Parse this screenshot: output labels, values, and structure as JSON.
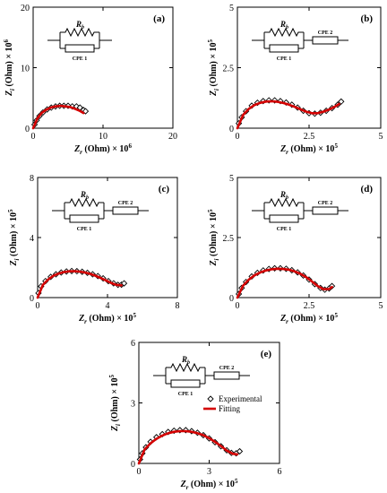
{
  "legend": {
    "experimental_label": "Experimental",
    "fitting_label": "Fitting",
    "experimental_color": "#000000",
    "fitting_color": "#d40000"
  },
  "circuit_labels": {
    "resistor": "R",
    "resistor_sub": "b",
    "cpe1": "CPE 1",
    "cpe2": "CPE 2"
  },
  "chart_data": [
    {
      "type": "scatter",
      "panel": "(a)",
      "xlabel": "Z_r (Ohm) × 10^6",
      "ylabel": "Z_i (Ohm) × 10^6",
      "xlim": [
        0,
        20
      ],
      "ylim": [
        0,
        20
      ],
      "xticks": [
        "0",
        "10",
        "20"
      ],
      "yticks": [
        "0",
        "10",
        "20"
      ],
      "circuit": "one",
      "legend": false,
      "series": [
        {
          "name": "Experimental",
          "x": [
            0.2,
            0.5,
            0.9,
            1.4,
            2.0,
            2.6,
            3.2,
            3.8,
            4.4,
            5.0,
            5.6,
            6.2,
            6.7,
            7.2,
            7.5
          ],
          "y": [
            0.6,
            1.3,
            2.0,
            2.6,
            3.1,
            3.4,
            3.6,
            3.7,
            3.7,
            3.7,
            3.6,
            3.6,
            3.4,
            3.0,
            2.8
          ]
        },
        {
          "name": "Fitting",
          "x": [
            0,
            0.6,
            1.2,
            1.8,
            2.5,
            3.2,
            3.9,
            4.6,
            5.3,
            6.0,
            6.6,
            7.2
          ],
          "y": [
            0,
            1.6,
            2.5,
            3.0,
            3.4,
            3.6,
            3.7,
            3.6,
            3.5,
            3.2,
            2.9,
            2.5
          ]
        }
      ]
    },
    {
      "type": "scatter",
      "panel": "(b)",
      "xlabel": "Z_r (Ohm) × 10^5",
      "ylabel": "Z_i (Ohm) × 10^5",
      "xlim": [
        0,
        5
      ],
      "ylim": [
        0,
        5
      ],
      "xticks": [
        "0",
        "2.5",
        "5"
      ],
      "yticks": [
        "0",
        "2.5",
        "5"
      ],
      "circuit": "two",
      "legend": false,
      "series": [
        {
          "name": "Experimental",
          "x": [
            0.05,
            0.15,
            0.3,
            0.5,
            0.7,
            0.9,
            1.1,
            1.3,
            1.5,
            1.7,
            1.9,
            2.1,
            2.3,
            2.5,
            2.7,
            2.9,
            3.1,
            3.3,
            3.5,
            3.62
          ],
          "y": [
            0.2,
            0.45,
            0.7,
            0.93,
            1.05,
            1.12,
            1.15,
            1.15,
            1.12,
            1.06,
            0.97,
            0.85,
            0.72,
            0.62,
            0.6,
            0.64,
            0.72,
            0.83,
            0.97,
            1.1
          ]
        },
        {
          "name": "Fitting",
          "x": [
            0,
            0.2,
            0.4,
            0.6,
            0.8,
            1.0,
            1.2,
            1.4,
            1.6,
            1.8,
            2.0,
            2.2,
            2.4,
            2.6,
            2.8,
            3.0,
            3.2,
            3.4,
            3.55
          ],
          "y": [
            0,
            0.55,
            0.8,
            0.96,
            1.05,
            1.1,
            1.11,
            1.09,
            1.04,
            0.97,
            0.88,
            0.78,
            0.68,
            0.62,
            0.62,
            0.68,
            0.77,
            0.89,
            1.0
          ]
        }
      ]
    },
    {
      "type": "scatter",
      "panel": "(c)",
      "xlabel": "Z_r (Ohm) × 10^5",
      "ylabel": "Z_i (Ohm) × 10^5",
      "xlim": [
        0,
        8
      ],
      "ylim": [
        0,
        8
      ],
      "xticks": [
        "0",
        "4",
        "8"
      ],
      "yticks": [
        "0",
        "4",
        "8"
      ],
      "circuit": "two",
      "legend": false,
      "series": [
        {
          "name": "Experimental",
          "x": [
            0.05,
            0.2,
            0.45,
            0.75,
            1.05,
            1.35,
            1.65,
            1.95,
            2.25,
            2.55,
            2.85,
            3.15,
            3.45,
            3.75,
            4.05,
            4.35,
            4.6,
            4.8,
            4.95
          ],
          "y": [
            0.3,
            0.75,
            1.1,
            1.38,
            1.55,
            1.67,
            1.74,
            1.77,
            1.76,
            1.72,
            1.65,
            1.55,
            1.43,
            1.28,
            1.1,
            0.95,
            0.85,
            0.86,
            0.95
          ]
        },
        {
          "name": "Fitting",
          "x": [
            0,
            0.3,
            0.6,
            0.9,
            1.2,
            1.5,
            1.8,
            2.1,
            2.4,
            2.7,
            3.0,
            3.3,
            3.6,
            3.9,
            4.2,
            4.5,
            4.8
          ],
          "y": [
            0,
            0.85,
            1.2,
            1.45,
            1.6,
            1.7,
            1.75,
            1.76,
            1.73,
            1.67,
            1.58,
            1.46,
            1.31,
            1.15,
            0.98,
            0.85,
            0.82
          ]
        }
      ]
    },
    {
      "type": "scatter",
      "panel": "(d)",
      "xlabel": "Z_r (Ohm) × 10^5",
      "ylabel": "Z_i (Ohm) × 10^5",
      "xlim": [
        0,
        5
      ],
      "ylim": [
        0,
        5
      ],
      "xticks": [
        "0",
        "2.5",
        "5"
      ],
      "yticks": [
        "0",
        "2.5",
        "5"
      ],
      "circuit": "two",
      "legend": false,
      "series": [
        {
          "name": "Experimental",
          "x": [
            0.05,
            0.15,
            0.3,
            0.5,
            0.7,
            0.9,
            1.1,
            1.3,
            1.5,
            1.7,
            1.9,
            2.1,
            2.3,
            2.5,
            2.7,
            2.9,
            3.05,
            3.2,
            3.3
          ],
          "y": [
            0.15,
            0.4,
            0.65,
            0.88,
            1.03,
            1.13,
            1.19,
            1.22,
            1.22,
            1.2,
            1.14,
            1.05,
            0.92,
            0.75,
            0.56,
            0.4,
            0.33,
            0.38,
            0.48
          ]
        },
        {
          "name": "Fitting",
          "x": [
            0,
            0.2,
            0.4,
            0.6,
            0.8,
            1.0,
            1.2,
            1.4,
            1.6,
            1.8,
            2.0,
            2.2,
            2.4,
            2.6,
            2.8,
            3.0,
            3.2,
            3.3
          ],
          "y": [
            0,
            0.5,
            0.75,
            0.93,
            1.05,
            1.13,
            1.18,
            1.2,
            1.19,
            1.16,
            1.09,
            0.99,
            0.85,
            0.67,
            0.48,
            0.35,
            0.36,
            0.44
          ]
        }
      ]
    },
    {
      "type": "scatter",
      "panel": "(e)",
      "xlabel": "Z_r (Ohm) × 10^5",
      "ylabel": "Z_i (Ohm) × 10^5",
      "xlim": [
        0,
        6
      ],
      "ylim": [
        0,
        6
      ],
      "xticks": [
        "0",
        "3",
        "6"
      ],
      "yticks": [
        "0",
        "3",
        "6"
      ],
      "circuit": "two",
      "legend": true,
      "series": [
        {
          "name": "Experimental",
          "x": [
            0.05,
            0.15,
            0.3,
            0.5,
            0.75,
            1.0,
            1.25,
            1.5,
            1.75,
            2.0,
            2.25,
            2.5,
            2.75,
            3.0,
            3.25,
            3.5,
            3.75,
            3.95,
            4.15,
            4.3
          ],
          "y": [
            0.2,
            0.5,
            0.8,
            1.07,
            1.3,
            1.45,
            1.56,
            1.62,
            1.65,
            1.65,
            1.6,
            1.52,
            1.4,
            1.24,
            1.05,
            0.85,
            0.65,
            0.52,
            0.5,
            0.6
          ]
        },
        {
          "name": "Fitting",
          "x": [
            0,
            0.25,
            0.5,
            0.75,
            1.0,
            1.25,
            1.5,
            1.75,
            2.0,
            2.25,
            2.5,
            2.75,
            3.0,
            3.25,
            3.5,
            3.75,
            4.0,
            4.2
          ],
          "y": [
            0,
            0.7,
            1.0,
            1.22,
            1.38,
            1.5,
            1.57,
            1.6,
            1.6,
            1.57,
            1.5,
            1.4,
            1.25,
            1.07,
            0.86,
            0.64,
            0.48,
            0.45
          ]
        }
      ]
    }
  ]
}
